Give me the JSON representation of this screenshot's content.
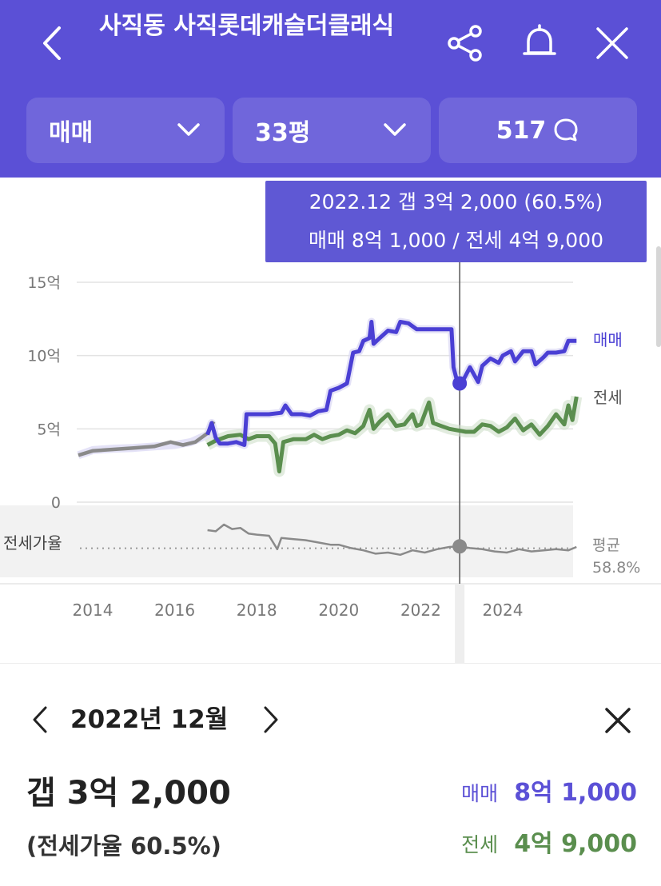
{
  "header": {
    "title": "사직동 사직롯데캐슬더클래식",
    "back_icon": "chevron-left-icon",
    "share_icon": "share-icon",
    "bell_icon": "bell-icon",
    "close_icon": "close-icon",
    "background": "#5b50d6"
  },
  "filters": {
    "type": "매매",
    "size": "33평",
    "comments_count": "517",
    "comment_icon": "speech-bubble-icon"
  },
  "tooltip": {
    "line1": "2022.12  갭 3억 2,000 (60.5%)",
    "line2": "매매 8억 1,000 / 전세 4억 9,000"
  },
  "chart_legend": {
    "sale": "매매",
    "jeonse": "전세",
    "ratio": "전세가율",
    "avg_label": "평균",
    "avg_value": "58.8%"
  },
  "chart_data": {
    "type": "line",
    "x_ticks": [
      "2014",
      "2016",
      "2018",
      "2020",
      "2022",
      "2024"
    ],
    "y_ticks": [
      "15억",
      "10억",
      "5억",
      "0"
    ],
    "ylim": [
      0,
      15
    ],
    "y_unit": "억",
    "series": [
      {
        "name": "매매",
        "color": "#4a3fd4",
        "points": [
          [
            2013.65,
            3.2
          ],
          [
            2014.0,
            3.55
          ],
          [
            2014.5,
            3.65
          ],
          [
            2015.0,
            3.7
          ],
          [
            2015.5,
            3.8
          ],
          [
            2016.0,
            3.9
          ],
          [
            2016.4,
            4.1
          ],
          [
            2016.8,
            4.6
          ],
          [
            2016.9,
            5.4
          ],
          [
            2017.0,
            4.4
          ],
          [
            2017.1,
            4.0
          ],
          [
            2017.3,
            4.0
          ],
          [
            2017.5,
            4.1
          ],
          [
            2017.7,
            3.9
          ],
          [
            2017.75,
            6.0
          ],
          [
            2018.0,
            6.0
          ],
          [
            2018.3,
            6.0
          ],
          [
            2018.6,
            6.1
          ],
          [
            2018.7,
            6.6
          ],
          [
            2018.85,
            6.0
          ],
          [
            2019.1,
            6.0
          ],
          [
            2019.3,
            5.9
          ],
          [
            2019.5,
            6.2
          ],
          [
            2019.7,
            6.3
          ],
          [
            2019.8,
            7.6
          ],
          [
            2020.0,
            7.8
          ],
          [
            2020.2,
            8.1
          ],
          [
            2020.35,
            10.2
          ],
          [
            2020.5,
            10.3
          ],
          [
            2020.6,
            11.0
          ],
          [
            2020.75,
            11.2
          ],
          [
            2020.8,
            12.3
          ],
          [
            2020.85,
            10.8
          ],
          [
            2021.0,
            11.2
          ],
          [
            2021.2,
            11.7
          ],
          [
            2021.4,
            11.6
          ],
          [
            2021.5,
            12.3
          ],
          [
            2021.7,
            12.2
          ],
          [
            2021.9,
            11.8
          ],
          [
            2022.0,
            11.8
          ],
          [
            2022.3,
            11.8
          ],
          [
            2022.75,
            11.8
          ],
          [
            2022.8,
            9.2
          ],
          [
            2022.9,
            8.1
          ],
          [
            2023.05,
            8.4
          ],
          [
            2023.2,
            9.2
          ],
          [
            2023.4,
            8.2
          ],
          [
            2023.5,
            9.3
          ],
          [
            2023.7,
            9.8
          ],
          [
            2023.9,
            9.5
          ],
          [
            2024.0,
            10.0
          ],
          [
            2024.2,
            10.3
          ],
          [
            2024.3,
            9.6
          ],
          [
            2024.5,
            10.3
          ],
          [
            2024.7,
            10.3
          ],
          [
            2024.8,
            9.4
          ],
          [
            2025.0,
            9.9
          ],
          [
            2025.1,
            10.2
          ],
          [
            2025.3,
            10.2
          ],
          [
            2025.5,
            10.3
          ],
          [
            2025.6,
            11.0
          ],
          [
            2025.8,
            11.0
          ]
        ]
      },
      {
        "name": "전세",
        "color": "#5a8e4e",
        "points": [
          [
            2016.8,
            3.9
          ],
          [
            2017.0,
            4.2
          ],
          [
            2017.3,
            4.5
          ],
          [
            2017.6,
            4.6
          ],
          [
            2017.8,
            4.3
          ],
          [
            2018.0,
            4.5
          ],
          [
            2018.3,
            4.5
          ],
          [
            2018.45,
            4.0
          ],
          [
            2018.55,
            2.1
          ],
          [
            2018.65,
            4.1
          ],
          [
            2018.9,
            4.3
          ],
          [
            2019.2,
            4.3
          ],
          [
            2019.4,
            4.6
          ],
          [
            2019.6,
            4.3
          ],
          [
            2019.8,
            4.5
          ],
          [
            2020.0,
            4.6
          ],
          [
            2020.2,
            4.9
          ],
          [
            2020.4,
            4.7
          ],
          [
            2020.6,
            5.2
          ],
          [
            2020.75,
            6.3
          ],
          [
            2020.85,
            5.0
          ],
          [
            2021.0,
            5.5
          ],
          [
            2021.2,
            6.0
          ],
          [
            2021.4,
            5.2
          ],
          [
            2021.6,
            5.3
          ],
          [
            2021.8,
            6.0
          ],
          [
            2021.9,
            5.2
          ],
          [
            2022.0,
            5.3
          ],
          [
            2022.2,
            6.8
          ],
          [
            2022.3,
            5.4
          ],
          [
            2022.5,
            5.2
          ],
          [
            2022.7,
            5.0
          ],
          [
            2022.9,
            4.9
          ],
          [
            2023.1,
            4.8
          ],
          [
            2023.3,
            4.8
          ],
          [
            2023.5,
            5.3
          ],
          [
            2023.7,
            5.2
          ],
          [
            2023.9,
            4.8
          ],
          [
            2024.1,
            5.1
          ],
          [
            2024.3,
            5.7
          ],
          [
            2024.5,
            4.9
          ],
          [
            2024.7,
            5.3
          ],
          [
            2024.9,
            4.6
          ],
          [
            2025.1,
            5.2
          ],
          [
            2025.3,
            6.0
          ],
          [
            2025.5,
            5.3
          ],
          [
            2025.6,
            6.6
          ],
          [
            2025.7,
            5.6
          ],
          [
            2025.8,
            7.2
          ]
        ]
      },
      {
        "name": "past",
        "color": "#8a8a8a",
        "points": [
          [
            2013.65,
            3.2
          ],
          [
            2014.0,
            3.5
          ],
          [
            2014.5,
            3.6
          ],
          [
            2015.0,
            3.7
          ],
          [
            2015.5,
            3.8
          ],
          [
            2015.9,
            4.1
          ],
          [
            2016.2,
            3.9
          ],
          [
            2016.5,
            4.1
          ],
          [
            2016.8,
            4.7
          ],
          [
            2016.95,
            5.5
          ]
        ]
      }
    ],
    "ratio_series": {
      "name": "전세가율",
      "color": "#8a8a8a",
      "points": [
        [
          2016.8,
          75
        ],
        [
          2017.0,
          74
        ],
        [
          2017.2,
          80
        ],
        [
          2017.4,
          76
        ],
        [
          2017.6,
          77
        ],
        [
          2017.8,
          72
        ],
        [
          2018.0,
          71
        ],
        [
          2018.3,
          70
        ],
        [
          2018.5,
          58
        ],
        [
          2018.6,
          68
        ],
        [
          2018.9,
          67
        ],
        [
          2019.2,
          66
        ],
        [
          2019.5,
          64
        ],
        [
          2019.8,
          62
        ],
        [
          2020.0,
          62
        ],
        [
          2020.3,
          59
        ],
        [
          2020.6,
          57
        ],
        [
          2020.9,
          54
        ],
        [
          2021.2,
          55
        ],
        [
          2021.5,
          53
        ],
        [
          2021.8,
          57
        ],
        [
          2022.1,
          55
        ],
        [
          2022.4,
          58
        ],
        [
          2022.7,
          60
        ],
        [
          2022.95,
          60.5
        ],
        [
          2023.2,
          59
        ],
        [
          2023.5,
          58
        ],
        [
          2023.8,
          56
        ],
        [
          2024.1,
          55
        ],
        [
          2024.4,
          58
        ],
        [
          2024.7,
          56
        ],
        [
          2025.0,
          57
        ],
        [
          2025.3,
          58
        ],
        [
          2025.6,
          57
        ],
        [
          2025.8,
          60
        ]
      ],
      "average": 58.8
    },
    "selected_x": 2022.95,
    "selected_sale": 8.1,
    "selected_ratio": 60.5
  },
  "detail": {
    "month": "2022년 12월",
    "gap": "갭 3억 2,000",
    "ratio": "(전세가율 60.5%)",
    "sale_label": "매매",
    "sale_value": "8억 1,000",
    "jeonse_label": "전세",
    "jeonse_value": "4억 9,000",
    "sale_color": "#5b50d6",
    "jeonse_color": "#5a8e4e"
  }
}
